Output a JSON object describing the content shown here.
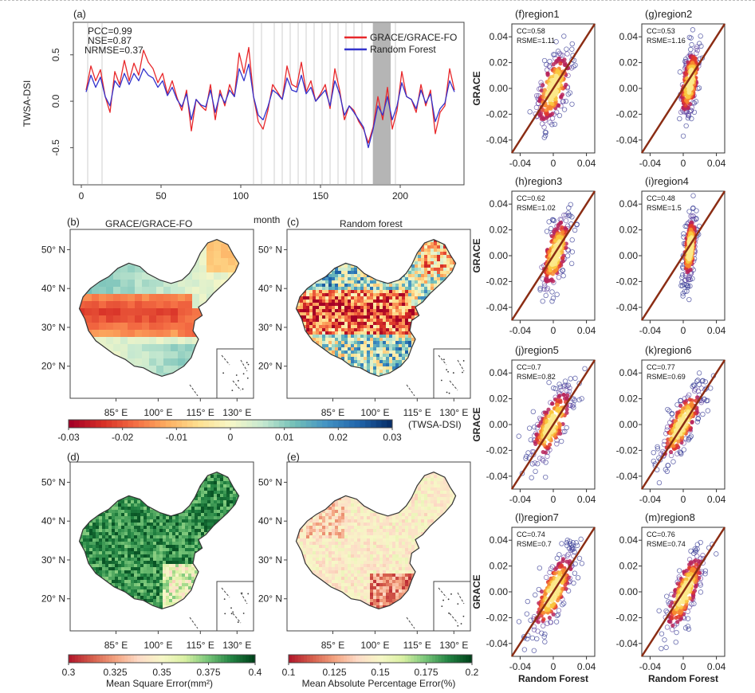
{
  "chart_data": [
    {
      "id": "a",
      "type": "line",
      "panel_label": "(a)",
      "xlabel": "month",
      "ylabel": "TWSA-DSI",
      "xlim": [
        -5,
        240
      ],
      "ylim": [
        -0.9,
        0.85
      ],
      "xticks": [
        0,
        50,
        100,
        150,
        200
      ],
      "yticks": [
        -0.5,
        0.0,
        0.5
      ],
      "ytick_labels": [
        "-0.5",
        "0.0",
        "0.5"
      ],
      "stats": [
        "PCC=0.99",
        "NSE=0.87",
        "NRMSE=0.37"
      ],
      "legend_position": "top-right",
      "series": [
        {
          "name": "GRACE/GRACE-FO",
          "color": "#e8282b",
          "x": [
            3,
            6,
            9,
            12,
            15,
            18,
            21,
            24,
            27,
            30,
            33,
            36,
            39,
            42,
            45,
            48,
            51,
            54,
            57,
            60,
            63,
            66,
            69,
            72,
            75,
            78,
            81,
            84,
            87,
            90,
            93,
            96,
            99,
            102,
            105,
            108,
            111,
            114,
            117,
            120,
            123,
            126,
            129,
            132,
            135,
            138,
            141,
            144,
            147,
            150,
            153,
            156,
            159,
            162,
            165,
            168,
            171,
            174,
            177,
            180,
            183,
            186,
            189,
            192,
            195,
            198,
            201,
            204,
            207,
            210,
            213,
            216,
            219,
            222,
            225,
            228,
            231,
            234
          ],
          "values": [
            0.12,
            0.38,
            0.22,
            0.34,
            0.05,
            -0.12,
            0.32,
            0.18,
            0.44,
            0.22,
            0.41,
            0.28,
            0.55,
            0.42,
            0.35,
            0.2,
            0.3,
            0.08,
            0.22,
            0.04,
            -0.1,
            0.12,
            -0.32,
            0.02,
            -0.05,
            -0.1,
            0.18,
            -0.2,
            0.12,
            -0.05,
            0.18,
            0.05,
            0.52,
            0.3,
            0.58,
            0.05,
            -0.22,
            -0.3,
            -0.1,
            0.18,
            0.1,
            0.02,
            0.38,
            0.18,
            0.15,
            0.42,
            0.1,
            0.22,
            0.0,
            0.08,
            0.18,
            -0.08,
            0.35,
            0.12,
            -0.2,
            -0.05,
            -0.1,
            -0.22,
            -0.3,
            -0.45,
            -0.28,
            0.05,
            -0.2,
            0.15,
            -0.3,
            -0.1,
            0.32,
            0.05,
            0.02,
            -0.12,
            0.18,
            -0.05,
            0.12,
            -0.35,
            -0.12,
            -0.05,
            0.35,
            0.12
          ]
        },
        {
          "name": "Random Forest",
          "color": "#3333cc",
          "x": [
            3,
            6,
            9,
            12,
            15,
            18,
            21,
            24,
            27,
            30,
            33,
            36,
            39,
            42,
            45,
            48,
            51,
            54,
            57,
            60,
            63,
            66,
            69,
            72,
            75,
            78,
            81,
            84,
            87,
            90,
            93,
            96,
            99,
            102,
            105,
            108,
            111,
            114,
            117,
            120,
            123,
            126,
            129,
            132,
            135,
            138,
            141,
            144,
            147,
            150,
            153,
            156,
            159,
            162,
            165,
            168,
            171,
            174,
            177,
            180,
            183,
            186,
            189,
            192,
            195,
            198,
            201,
            204,
            207,
            210,
            213,
            216,
            219,
            222,
            225,
            228,
            231,
            234
          ],
          "values": [
            0.1,
            0.28,
            0.15,
            0.26,
            0.05,
            -0.05,
            0.22,
            0.15,
            0.3,
            0.18,
            0.3,
            0.22,
            0.35,
            0.28,
            0.25,
            0.15,
            0.22,
            0.06,
            0.15,
            0.02,
            -0.06,
            0.08,
            -0.2,
            0.02,
            -0.04,
            -0.06,
            0.12,
            -0.12,
            0.08,
            -0.02,
            0.12,
            0.05,
            0.35,
            0.22,
            0.4,
            0.05,
            -0.15,
            -0.2,
            -0.06,
            0.12,
            0.08,
            0.02,
            0.25,
            0.12,
            0.1,
            0.28,
            0.08,
            0.15,
            0.0,
            0.06,
            0.12,
            -0.05,
            0.22,
            0.08,
            -0.15,
            -0.05,
            -0.12,
            -0.2,
            -0.28,
            -0.5,
            -0.3,
            -0.05,
            -0.15,
            0.05,
            -0.2,
            -0.05,
            0.2,
            0.05,
            0.02,
            -0.08,
            0.12,
            -0.02,
            0.08,
            -0.22,
            -0.08,
            -0.02,
            0.22,
            0.1
          ]
        }
      ],
      "shaded_months": [
        4,
        13,
        108,
        113,
        121,
        126,
        131,
        136,
        141,
        146,
        151,
        156,
        161,
        166,
        171,
        176,
        183,
        190,
        197
      ]
    },
    {
      "id": "b",
      "type": "heatmap",
      "panel_label": "(b)",
      "title": "GRACE/GRACE-FO",
      "x_ticks": [
        "85° E",
        "100° E",
        "115° E",
        "130° E"
      ],
      "y_ticks": [
        "50° N",
        "40° N",
        "30° N",
        "20° N"
      ]
    },
    {
      "id": "c",
      "type": "heatmap",
      "panel_label": "(c)",
      "title": "Random forest",
      "x_ticks": [
        "85° E",
        "100° E",
        "115° E",
        "130° E"
      ],
      "y_ticks": [
        "50° N",
        "40° N",
        "30° N",
        "20° N"
      ]
    },
    {
      "id": "d",
      "type": "heatmap",
      "panel_label": "(d)",
      "x_ticks": [
        "85° E",
        "100° E",
        "115° E",
        "130° E"
      ],
      "y_ticks": [
        "50° N",
        "40° N",
        "30° N",
        "20° N"
      ]
    },
    {
      "id": "e",
      "type": "heatmap",
      "panel_label": "(e)",
      "x_ticks": [
        "85° E",
        "100° E",
        "115° E",
        "130° E"
      ],
      "y_ticks": [
        "50° N",
        "40° N",
        "30° N",
        "20° N"
      ]
    },
    {
      "id": "f",
      "type": "scatter",
      "panel_label": "(f)region1",
      "stats": [
        "CC=0.58",
        "RSME=1.11"
      ],
      "xlim": [
        -0.05,
        0.05
      ],
      "ylim": [
        -0.05,
        0.05
      ],
      "xticks": [
        -0.04,
        0,
        0.04
      ],
      "yticks": [
        -0.04,
        -0.02,
        0.0,
        0.02,
        0.04
      ],
      "xtick_labels": [
        "-0.04",
        "0",
        "0.04"
      ],
      "ytick_labels": [
        "-0.04",
        "-0.02",
        "0.00",
        "0.02",
        "0.04"
      ],
      "xlabel": "",
      "ylabel": "GRACE",
      "cluster": {
        "x_mean": 0.0,
        "y_mean": 0.0,
        "x_sd": 0.011,
        "y_sd": 0.015,
        "corr": 0.58
      }
    },
    {
      "id": "g",
      "type": "scatter",
      "panel_label": "(g)region2",
      "stats": [
        "CC=0.53",
        "RSME=1.16"
      ],
      "xlim": [
        -0.05,
        0.05
      ],
      "ylim": [
        -0.05,
        0.05
      ],
      "xticks": [
        -0.04,
        0,
        0.04
      ],
      "yticks": [
        -0.04,
        -0.02,
        0.0,
        0.02,
        0.04
      ],
      "xtick_labels": [
        "-0.04",
        "0",
        "0.04"
      ],
      "ytick_labels": [
        "-0.04",
        "-0.02",
        "0.00",
        "0.02",
        "0.04"
      ],
      "xlabel": "",
      "ylabel": "",
      "cluster": {
        "x_mean": 0.008,
        "y_mean": 0.005,
        "x_sd": 0.006,
        "y_sd": 0.014,
        "corr": 0.53
      }
    },
    {
      "id": "h",
      "type": "scatter",
      "panel_label": "(h)region3",
      "stats": [
        "CC=0.62",
        "RSME=1.02"
      ],
      "xlim": [
        -0.05,
        0.05
      ],
      "ylim": [
        -0.05,
        0.05
      ],
      "xticks": [
        -0.04,
        0,
        0.04
      ],
      "yticks": [
        -0.04,
        -0.02,
        0.0,
        0.02,
        0.04
      ],
      "xtick_labels": [
        "-0.04",
        "0",
        "0.04"
      ],
      "ytick_labels": [
        "-0.04",
        "-0.02",
        "0.00",
        "0.02",
        "0.04"
      ],
      "xlabel": "",
      "ylabel": "GRACE",
      "cluster": {
        "x_mean": 0.003,
        "y_mean": 0.002,
        "x_sd": 0.009,
        "y_sd": 0.015,
        "corr": 0.62
      }
    },
    {
      "id": "i",
      "type": "scatter",
      "panel_label": "(i)region4",
      "stats": [
        "CC=0.48",
        "RSME=1.5"
      ],
      "xlim": [
        -0.05,
        0.05
      ],
      "ylim": [
        -0.05,
        0.05
      ],
      "xticks": [
        -0.04,
        0,
        0.04
      ],
      "yticks": [
        -0.04,
        -0.02,
        0.0,
        0.02,
        0.04
      ],
      "xtick_labels": [
        "-0.04",
        "0",
        "0.04"
      ],
      "ytick_labels": [
        "-0.04",
        "-0.02",
        "0.00",
        "0.02",
        "0.04"
      ],
      "xlabel": "",
      "ylabel": "",
      "cluster": {
        "x_mean": 0.008,
        "y_mean": 0.006,
        "x_sd": 0.004,
        "y_sd": 0.013,
        "corr": 0.48
      }
    },
    {
      "id": "j",
      "type": "scatter",
      "panel_label": "(j)region5",
      "stats": [
        "CC=0.7",
        "RSME=0.82"
      ],
      "xlim": [
        -0.05,
        0.05
      ],
      "ylim": [
        -0.05,
        0.05
      ],
      "xticks": [
        -0.04,
        0,
        0.04
      ],
      "yticks": [
        -0.04,
        -0.02,
        0.0,
        0.02,
        0.04
      ],
      "xtick_labels": [
        "-0.04",
        "0",
        "0.04"
      ],
      "ytick_labels": [
        "-0.04",
        "-0.02",
        "0.00",
        "0.02",
        "0.04"
      ],
      "xlabel": "",
      "ylabel": "GRACE",
      "cluster": {
        "x_mean": -0.002,
        "y_mean": 0.0,
        "x_sd": 0.013,
        "y_sd": 0.015,
        "corr": 0.7
      }
    },
    {
      "id": "k",
      "type": "scatter",
      "panel_label": "(k)region6",
      "stats": [
        "CC=0.77",
        "RSME=0.69"
      ],
      "xlim": [
        -0.05,
        0.05
      ],
      "ylim": [
        -0.05,
        0.05
      ],
      "xticks": [
        -0.04,
        0,
        0.04
      ],
      "yticks": [
        -0.04,
        -0.02,
        0.0,
        0.02,
        0.04
      ],
      "xtick_labels": [
        "-0.04",
        "0",
        "0.04"
      ],
      "ytick_labels": [
        "-0.04",
        "-0.02",
        "0.00",
        "0.02",
        "0.04"
      ],
      "xlabel": "",
      "ylabel": "",
      "cluster": {
        "x_mean": -0.002,
        "y_mean": 0.0,
        "x_sd": 0.013,
        "y_sd": 0.015,
        "corr": 0.77
      }
    },
    {
      "id": "l",
      "type": "scatter",
      "panel_label": "(l)region7",
      "stats": [
        "CC=0.74",
        "RSME=0.7"
      ],
      "xlim": [
        -0.05,
        0.05
      ],
      "ylim": [
        -0.05,
        0.05
      ],
      "xticks": [
        -0.04,
        0,
        0.04
      ],
      "yticks": [
        -0.04,
        -0.02,
        0.0,
        0.02,
        0.04
      ],
      "xtick_labels": [
        "-0.04",
        "0",
        "0.04"
      ],
      "ytick_labels": [
        "-0.04",
        "-0.02",
        "0.00",
        "0.02",
        "0.04"
      ],
      "xlabel": "Random Forest",
      "ylabel": "GRACE",
      "cluster": {
        "x_mean": 0.0,
        "y_mean": 0.0,
        "x_sd": 0.013,
        "y_sd": 0.016,
        "corr": 0.74
      }
    },
    {
      "id": "m",
      "type": "scatter",
      "panel_label": "(m)region8",
      "stats": [
        "CC=0.76",
        "RSME=0.74"
      ],
      "xlim": [
        -0.05,
        0.05
      ],
      "ylim": [
        -0.05,
        0.05
      ],
      "xticks": [
        -0.04,
        0,
        0.04
      ],
      "yticks": [
        -0.04,
        -0.02,
        0.0,
        0.02,
        0.04
      ],
      "xtick_labels": [
        "-0.04",
        "0",
        "0.04"
      ],
      "ytick_labels": [
        "-0.04",
        "-0.02",
        "0.00",
        "0.02",
        "0.04"
      ],
      "xlabel": "Random Forest",
      "ylabel": "",
      "cluster": {
        "x_mean": 0.002,
        "y_mean": 0.0,
        "x_sd": 0.012,
        "y_sd": 0.016,
        "corr": 0.76
      }
    }
  ],
  "colorbars": {
    "twsa": {
      "label": "(TWSA-DSI)",
      "tick_labels": [
        "-0.03",
        "-0.02",
        "-0.01",
        "0",
        "0.01",
        "0.02",
        "0.03"
      ],
      "colors": [
        "#a50026",
        "#d73027",
        "#f46d43",
        "#fdae61",
        "#fee090",
        "#f7f7c7",
        "#c7e9d0",
        "#74c0b8",
        "#4393c3",
        "#2166ac",
        "#08306b"
      ]
    },
    "mse": {
      "label": "Mean Square Error(mm²)",
      "tick_labels": [
        "0.3",
        "0.325",
        "0.35",
        "0.375",
        "0.4"
      ],
      "colors": [
        "#b2182b",
        "#d6604d",
        "#f4a582",
        "#fddbc7",
        "#f7f7c7",
        "#d9f0a3",
        "#78c679",
        "#238443",
        "#00441b"
      ]
    },
    "mape": {
      "label": "Mean Absolute Percentage Error(%)",
      "tick_labels": [
        "0.1",
        "0.125",
        "0.15",
        "0.175",
        "0.2"
      ],
      "colors": [
        "#b2182b",
        "#d6604d",
        "#f4a582",
        "#fddbc7",
        "#f7f7c7",
        "#d9f0a3",
        "#78c679",
        "#238443",
        "#00441b"
      ]
    }
  }
}
